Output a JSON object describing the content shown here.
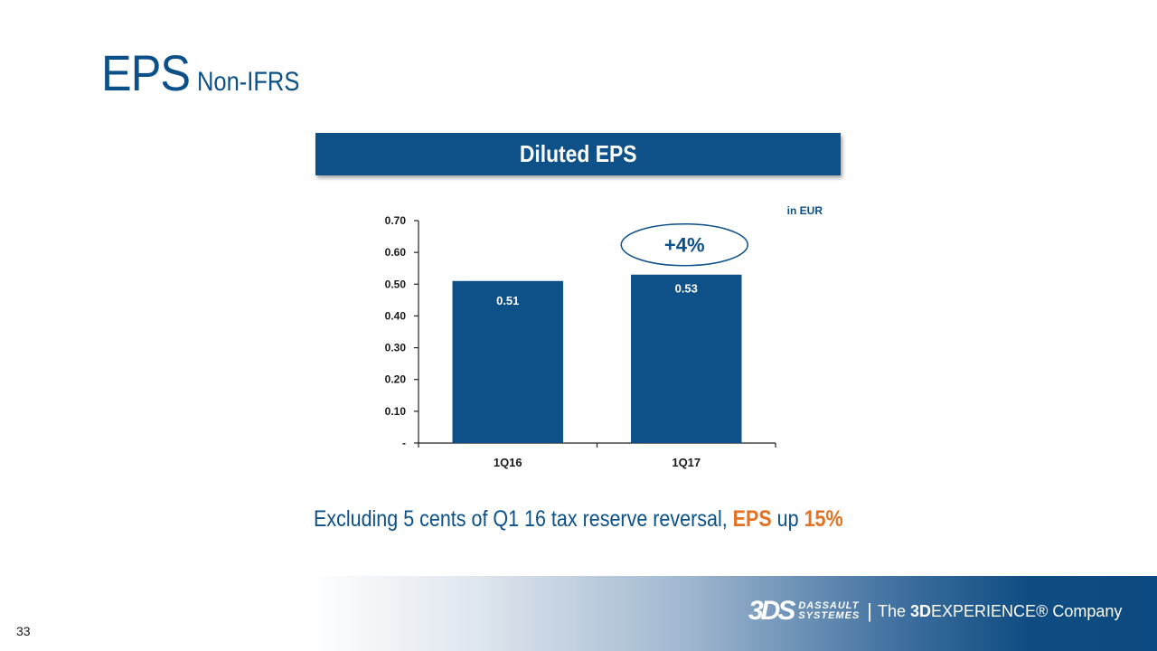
{
  "title": {
    "main": "EPS",
    "sub": "Non-IFRS"
  },
  "banner": {
    "label": "Diluted EPS"
  },
  "chart_data": {
    "type": "bar",
    "categories": [
      "1Q16",
      "1Q17"
    ],
    "values": [
      0.51,
      0.53
    ],
    "value_labels": [
      "0.51",
      "0.53"
    ],
    "unit_label": "in EUR",
    "ylim": [
      0,
      0.7
    ],
    "yticks": [
      0,
      0.1,
      0.2,
      0.3,
      0.4,
      0.5,
      0.6,
      0.7
    ],
    "ytick_labels": [
      "-",
      "0.10",
      "0.20",
      "0.30",
      "0.40",
      "0.50",
      "0.60",
      "0.70"
    ],
    "annotation": "+4%",
    "grid": false,
    "bar_color": "#0e5189"
  },
  "footnote": {
    "prefix": "Excluding 5 cents of Q1 16 tax reserve reversal, ",
    "accent1": "EPS",
    "middle": " up ",
    "accent2": "15%"
  },
  "footer": {
    "logo_mark": "3DS",
    "brand_line1": "DASSAULT",
    "brand_line2": "SYSTEMES",
    "separator": "|",
    "tag_pre": "The ",
    "tag_bold": "3D",
    "tag_post": "EXPERIENCE® Company"
  },
  "page_number": "33",
  "colors": {
    "primary": "#0b5088",
    "accent": "#e37222"
  }
}
